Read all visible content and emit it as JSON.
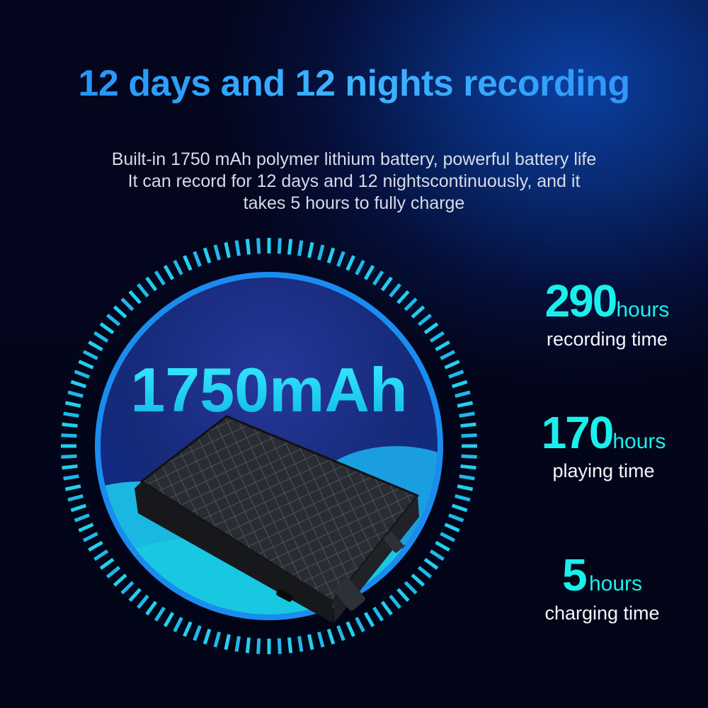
{
  "title": "12 days and 12 nights recording",
  "description": [
    "Built-in 1750 mAh polymer lithium battery, powerful battery life",
    "It can record for 12 days and 12 nightscontinuously, and it",
    "takes 5 hours to fully charge"
  ],
  "capacity": "1750mAh",
  "stats": [
    {
      "value": "290",
      "unit": "hours",
      "label": "recording time"
    },
    {
      "value": "170",
      "unit": "hours",
      "label": "playing time"
    },
    {
      "value": "5",
      "unit": "hours",
      "label": "charging time"
    }
  ],
  "colors": {
    "accent": "#19f0ec",
    "title_blue": "#2a9cf8",
    "ring_blue": "#1a8cf0",
    "background": "#03061c"
  }
}
